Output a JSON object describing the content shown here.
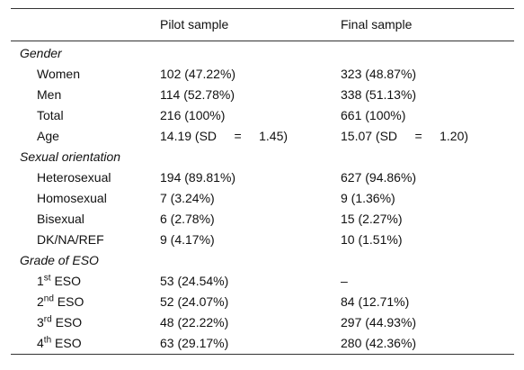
{
  "header": {
    "empty": "",
    "pilot": "Pilot sample",
    "final": "Final sample"
  },
  "gender": {
    "title": "Gender",
    "rows": [
      {
        "label": "Women",
        "pilot": "102 (47.22%)",
        "final": "323 (48.87%)"
      },
      {
        "label": "Men",
        "pilot": "114 (52.78%)",
        "final": "338 (51.13%)"
      },
      {
        "label": "Total",
        "pilot": "216 (100%)",
        "final": "661 (100%)"
      },
      {
        "label": "Age",
        "pilot": "14.19 (SD     =     1.45)",
        "final": "15.07 (SD     =     1.20)"
      }
    ]
  },
  "orientation": {
    "title": "Sexual orientation",
    "rows": [
      {
        "label": "Heterosexual",
        "pilot": "194 (89.81%)",
        "final": "627 (94.86%)"
      },
      {
        "label": "Homosexual",
        "pilot": "7 (3.24%)",
        "final": "9 (1.36%)"
      },
      {
        "label": "Bisexual",
        "pilot": "6 (2.78%)",
        "final": "15 (2.27%)"
      },
      {
        "label": "DK/NA/REF",
        "pilot": "9 (4.17%)",
        "final": "10 (1.51%)"
      }
    ]
  },
  "grade": {
    "title": "Grade of ESO",
    "rows": [
      {
        "num": "1",
        "sup": "st",
        "label": " ESO",
        "pilot": "53 (24.54%)",
        "final": "–"
      },
      {
        "num": "2",
        "sup": "nd",
        "label": " ESO",
        "pilot": "52 (24.07%)",
        "final": "84 (12.71%)"
      },
      {
        "num": "3",
        "sup": "rd",
        "label": " ESO",
        "pilot": "48 (22.22%)",
        "final": "297 (44.93%)"
      },
      {
        "num": "4",
        "sup": "th",
        "label": " ESO",
        "pilot": "63 (29.17%)",
        "final": "280 (42.36%)"
      }
    ]
  }
}
